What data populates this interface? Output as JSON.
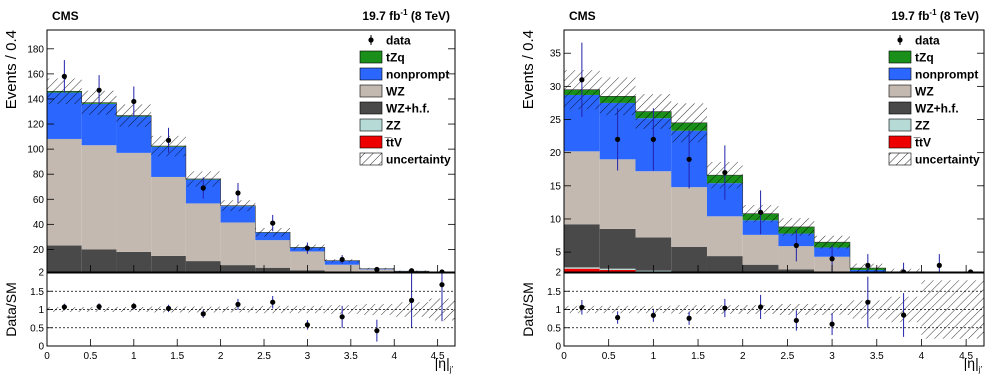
{
  "chart_data": [
    {
      "type": "bar",
      "header": {
        "experiment": "CMS",
        "lumi": "19.7 fb",
        "lumi_sup": "-1",
        "energy": "(8 TeV)"
      },
      "ylabel": "Events / 0.4",
      "xlabel": "|η|",
      "xlabel_sub": "j′",
      "ratio_ylabel": "Data/SM",
      "bin_edges": [
        0,
        0.4,
        0.8,
        1.2,
        1.6,
        2.0,
        2.4,
        2.8,
        3.2,
        3.6,
        4.0,
        4.4,
        4.7
      ],
      "xlim": [
        0,
        4.7
      ],
      "ylim": [
        2,
        195
      ],
      "yticks": [
        2,
        20,
        40,
        60,
        80,
        100,
        120,
        140,
        160,
        180
      ],
      "xticks": [
        0,
        0.5,
        1,
        1.5,
        2,
        2.5,
        3,
        3.5,
        4,
        4.5
      ],
      "xtick_labels": [
        "0",
        "0.5",
        "1",
        "1.5",
        "2",
        "2.5",
        "3",
        "3.5",
        "4",
        "4.5"
      ],
      "ratio_ylim": [
        0,
        2
      ],
      "ratio_yticks": [
        0,
        0.5,
        1,
        1.5
      ],
      "series_stacked_bottom_to_top": [
        {
          "name": "t̅tV",
          "color": "#ee0000",
          "values": [
            0.3,
            0.3,
            0.3,
            0.2,
            0.2,
            0.1,
            0.1,
            0.1,
            0.1,
            0,
            0,
            0
          ]
        },
        {
          "name": "ZZ",
          "color": "#b6dad5",
          "values": [
            0.8,
            0.8,
            0.7,
            0.6,
            0.5,
            0.4,
            0.3,
            0.3,
            0.2,
            0.1,
            0.1,
            0
          ]
        },
        {
          "name": "WZ+h.f.",
          "color": "#494949",
          "values": [
            22,
            19,
            17,
            14,
            10,
            7,
            5,
            3,
            1.5,
            1,
            0.5,
            0.2
          ]
        },
        {
          "name": "WZ",
          "color": "#c4b9b0",
          "values": [
            85,
            83,
            79,
            63,
            46,
            34,
            22,
            15,
            6,
            3,
            1.5,
            0.5
          ]
        },
        {
          "name": "nonprompt",
          "color": "#2b66ff",
          "values": [
            37,
            33,
            29,
            24,
            19,
            13,
            6,
            3,
            3,
            0.5,
            0.5,
            0.3
          ]
        },
        {
          "name": "tZq",
          "color": "#1a8f1a",
          "values": [
            1,
            0.9,
            0.8,
            0.6,
            0.5,
            0.4,
            0.3,
            0.3,
            0.2,
            0.1,
            0.1,
            0
          ]
        }
      ],
      "uncertainty_rel": [
        0.07,
        0.07,
        0.07,
        0.08,
        0.08,
        0.08,
        0.1,
        0.1,
        0.12,
        0.15,
        0.2,
        0.3
      ],
      "data": {
        "name": "data",
        "x": [
          0.2,
          0.6,
          1.0,
          1.4,
          1.8,
          2.2,
          2.6,
          3.0,
          3.4,
          3.8,
          4.2,
          4.55
        ],
        "y": [
          158,
          147,
          138,
          107,
          69,
          65,
          41,
          21,
          12,
          4,
          3,
          1
        ],
        "yerr": [
          13,
          12,
          12,
          10,
          8.5,
          8,
          6.5,
          4.5,
          3.5,
          2,
          1.7,
          1
        ]
      },
      "ratio": {
        "x": [
          0.2,
          0.6,
          1.0,
          1.4,
          1.8,
          2.2,
          2.6,
          3.0,
          3.4,
          3.8,
          4.2,
          4.55
        ],
        "y": [
          1.07,
          1.08,
          1.09,
          1.03,
          0.88,
          1.14,
          1.2,
          0.58,
          0.8,
          0.42,
          1.25,
          1.68
        ],
        "yerr": [
          0.09,
          0.09,
          0.09,
          0.1,
          0.11,
          0.15,
          0.17,
          0.13,
          0.3,
          0.3,
          0.75,
          1.0
        ]
      },
      "legend": {
        "placement": "top-right",
        "entries": [
          {
            "label": "data",
            "kind": "marker"
          },
          {
            "label": "tZq",
            "kind": "fill",
            "color": "#1a8f1a"
          },
          {
            "label": "nonprompt",
            "kind": "fill",
            "color": "#2b66ff"
          },
          {
            "label": "WZ",
            "kind": "fill",
            "color": "#c4b9b0"
          },
          {
            "label": "WZ+h.f.",
            "kind": "fill",
            "color": "#494949"
          },
          {
            "label": "ZZ",
            "kind": "fill",
            "color": "#b6dad5"
          },
          {
            "label": "t̅tV",
            "kind": "fill",
            "color": "#ee0000"
          },
          {
            "label": "uncertainty",
            "kind": "hatch"
          }
        ]
      }
    },
    {
      "type": "bar",
      "header": {
        "experiment": "CMS",
        "lumi": "19.7 fb",
        "lumi_sup": "-1",
        "energy": "(8 TeV)"
      },
      "ylabel": "Events / 0.4",
      "xlabel": "|η|",
      "xlabel_sub": "j′",
      "ratio_ylabel": "Data/SM",
      "bin_edges": [
        0,
        0.4,
        0.8,
        1.2,
        1.6,
        2.0,
        2.4,
        2.8,
        3.2,
        3.6,
        4.0,
        4.4,
        4.7
      ],
      "xlim": [
        0,
        4.7
      ],
      "ylim": [
        2,
        38.5
      ],
      "yticks": [
        2,
        5,
        10,
        15,
        20,
        25,
        30,
        35
      ],
      "xticks": [
        0,
        0.5,
        1,
        1.5,
        2,
        2.5,
        3,
        3.5,
        4,
        4.5
      ],
      "xtick_labels": [
        "0",
        "0.5",
        "1",
        "1.5",
        "2",
        "2.5",
        "3",
        "3.5",
        "4",
        "4.5"
      ],
      "ratio_ylim": [
        0,
        2
      ],
      "ratio_yticks": [
        0,
        0.5,
        1,
        1.5
      ],
      "series_stacked_bottom_to_top": [
        {
          "name": "t̅tV",
          "color": "#ee0000",
          "values": [
            2.5,
            2.3,
            2.0,
            1.6,
            1.2,
            0.9,
            0.7,
            0.5,
            0.3,
            0.2,
            0.1,
            0.05
          ]
        },
        {
          "name": "ZZ",
          "color": "#b6dad5",
          "values": [
            0.2,
            0.2,
            0.2,
            0.2,
            0.2,
            0.2,
            0.1,
            0.1,
            0.1,
            0.05,
            0,
            0
          ]
        },
        {
          "name": "WZ+h.f.",
          "color": "#494949",
          "values": [
            6.5,
            6,
            5,
            4,
            3,
            2,
            1.6,
            1.2,
            0.8,
            0.5,
            0.3,
            0.1
          ]
        },
        {
          "name": "WZ",
          "color": "#c4b9b0",
          "values": [
            11,
            10.5,
            10,
            9,
            6,
            4.5,
            3.5,
            2.5,
            0.7,
            0.6,
            0.3,
            0.2
          ]
        },
        {
          "name": "nonprompt",
          "color": "#2b66ff",
          "values": [
            8.5,
            8.5,
            8,
            8.5,
            5,
            2.2,
            1.9,
            1.4,
            0.4,
            0.3,
            0.2,
            0.1
          ]
        },
        {
          "name": "tZq",
          "color": "#1a8f1a",
          "values": [
            0.8,
            1.0,
            1.0,
            1.2,
            1.2,
            1.0,
            1.0,
            0.8,
            0.3,
            0.2,
            0.1,
            0.05
          ]
        }
      ],
      "uncertainty_rel": [
        0.1,
        0.1,
        0.1,
        0.12,
        0.12,
        0.12,
        0.15,
        0.15,
        0.25,
        0.35,
        0.8,
        0.8
      ],
      "data": {
        "name": "data",
        "x": [
          0.2,
          0.6,
          1.0,
          1.4,
          1.8,
          2.2,
          2.6,
          3.0,
          3.4,
          3.8,
          4.2,
          4.55
        ],
        "y": [
          31,
          22,
          22,
          19,
          17,
          11,
          6,
          4,
          3,
          2,
          3,
          1
        ],
        "yerr": [
          5.6,
          4.7,
          4.7,
          4.4,
          4.1,
          3.3,
          2.4,
          2,
          1.7,
          1.4,
          1.7,
          1
        ]
      },
      "ratio": {
        "x": [
          0.2,
          0.6,
          1.0,
          1.4,
          1.8,
          2.2,
          2.6,
          3.0,
          3.4,
          3.8
        ],
        "y": [
          1.06,
          0.78,
          0.84,
          0.76,
          1.04,
          1.07,
          0.7,
          0.6,
          1.2,
          0.85
        ],
        "yerr": [
          0.2,
          0.17,
          0.18,
          0.18,
          0.25,
          0.33,
          0.28,
          0.3,
          0.7,
          0.6
        ]
      },
      "legend": {
        "placement": "top-right",
        "entries": [
          {
            "label": "data",
            "kind": "marker"
          },
          {
            "label": "tZq",
            "kind": "fill",
            "color": "#1a8f1a"
          },
          {
            "label": "nonprompt",
            "kind": "fill",
            "color": "#2b66ff"
          },
          {
            "label": "WZ",
            "kind": "fill",
            "color": "#c4b9b0"
          },
          {
            "label": "WZ+h.f.",
            "kind": "fill",
            "color": "#494949"
          },
          {
            "label": "ZZ",
            "kind": "fill",
            "color": "#b6dad5"
          },
          {
            "label": "t̅tV",
            "kind": "fill",
            "color": "#ee0000"
          },
          {
            "label": "uncertainty",
            "kind": "hatch"
          }
        ]
      }
    }
  ]
}
